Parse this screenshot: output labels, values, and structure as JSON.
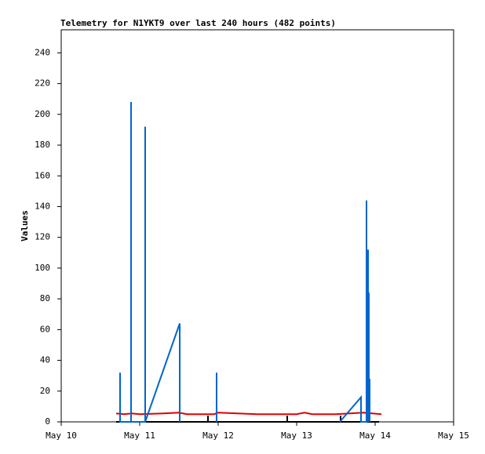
{
  "chart_data": {
    "type": "line",
    "title": "Telemetry for N1YKT9 over last 240 hours (482 points)",
    "y_label": "Values",
    "xlim": [
      10,
      15
    ],
    "xticks": [
      {
        "value": 10,
        "label": "May 10"
      },
      {
        "value": 11,
        "label": "May 11"
      },
      {
        "value": 12,
        "label": "May 12"
      },
      {
        "value": 13,
        "label": "May 13"
      },
      {
        "value": 14,
        "label": "May 14"
      },
      {
        "value": 15,
        "label": "May 15"
      }
    ],
    "ylim": [
      0,
      255
    ],
    "yticks": [
      0,
      20,
      40,
      60,
      80,
      100,
      120,
      140,
      160,
      180,
      200,
      220,
      240
    ],
    "series": [
      {
        "color": "#000000",
        "x": [
          10.7,
          11.87,
          11.87,
          11.87,
          12.88,
          12.88,
          12.88,
          13.56,
          13.56,
          13.56,
          14.05
        ],
        "values": [
          0,
          0,
          4,
          0,
          0,
          4,
          0,
          0,
          4,
          0,
          0
        ]
      },
      {
        "color": "#e00000",
        "x": [
          10.7,
          10.8,
          10.9,
          11.0,
          11.3,
          11.5,
          11.6,
          11.95,
          12.0,
          12.5,
          13.0,
          13.1,
          13.2,
          13.5,
          13.85,
          14.08
        ],
        "values": [
          5.5,
          5,
          5.5,
          5,
          5.5,
          6,
          5,
          5,
          6,
          5,
          5,
          6,
          5,
          5,
          6,
          5
        ]
      },
      {
        "color": "#0066cc",
        "x": [
          10.75,
          10.75,
          10.75,
          10.89,
          10.89,
          10.89,
          11.07,
          11.07,
          11.07,
          11.51,
          11.51,
          null,
          11.98,
          11.98,
          11.98,
          null,
          13.55,
          13.82,
          13.82,
          13.89,
          13.89,
          13.89,
          13.91,
          13.91,
          13.92,
          13.92,
          13.93,
          13.93
        ],
        "values": [
          0,
          32,
          0,
          0,
          208,
          0,
          0,
          192,
          0,
          64,
          0,
          null,
          0,
          32,
          0,
          null,
          0,
          16,
          0,
          0,
          144,
          0,
          112,
          0,
          84,
          0,
          28,
          0
        ]
      }
    ]
  }
}
